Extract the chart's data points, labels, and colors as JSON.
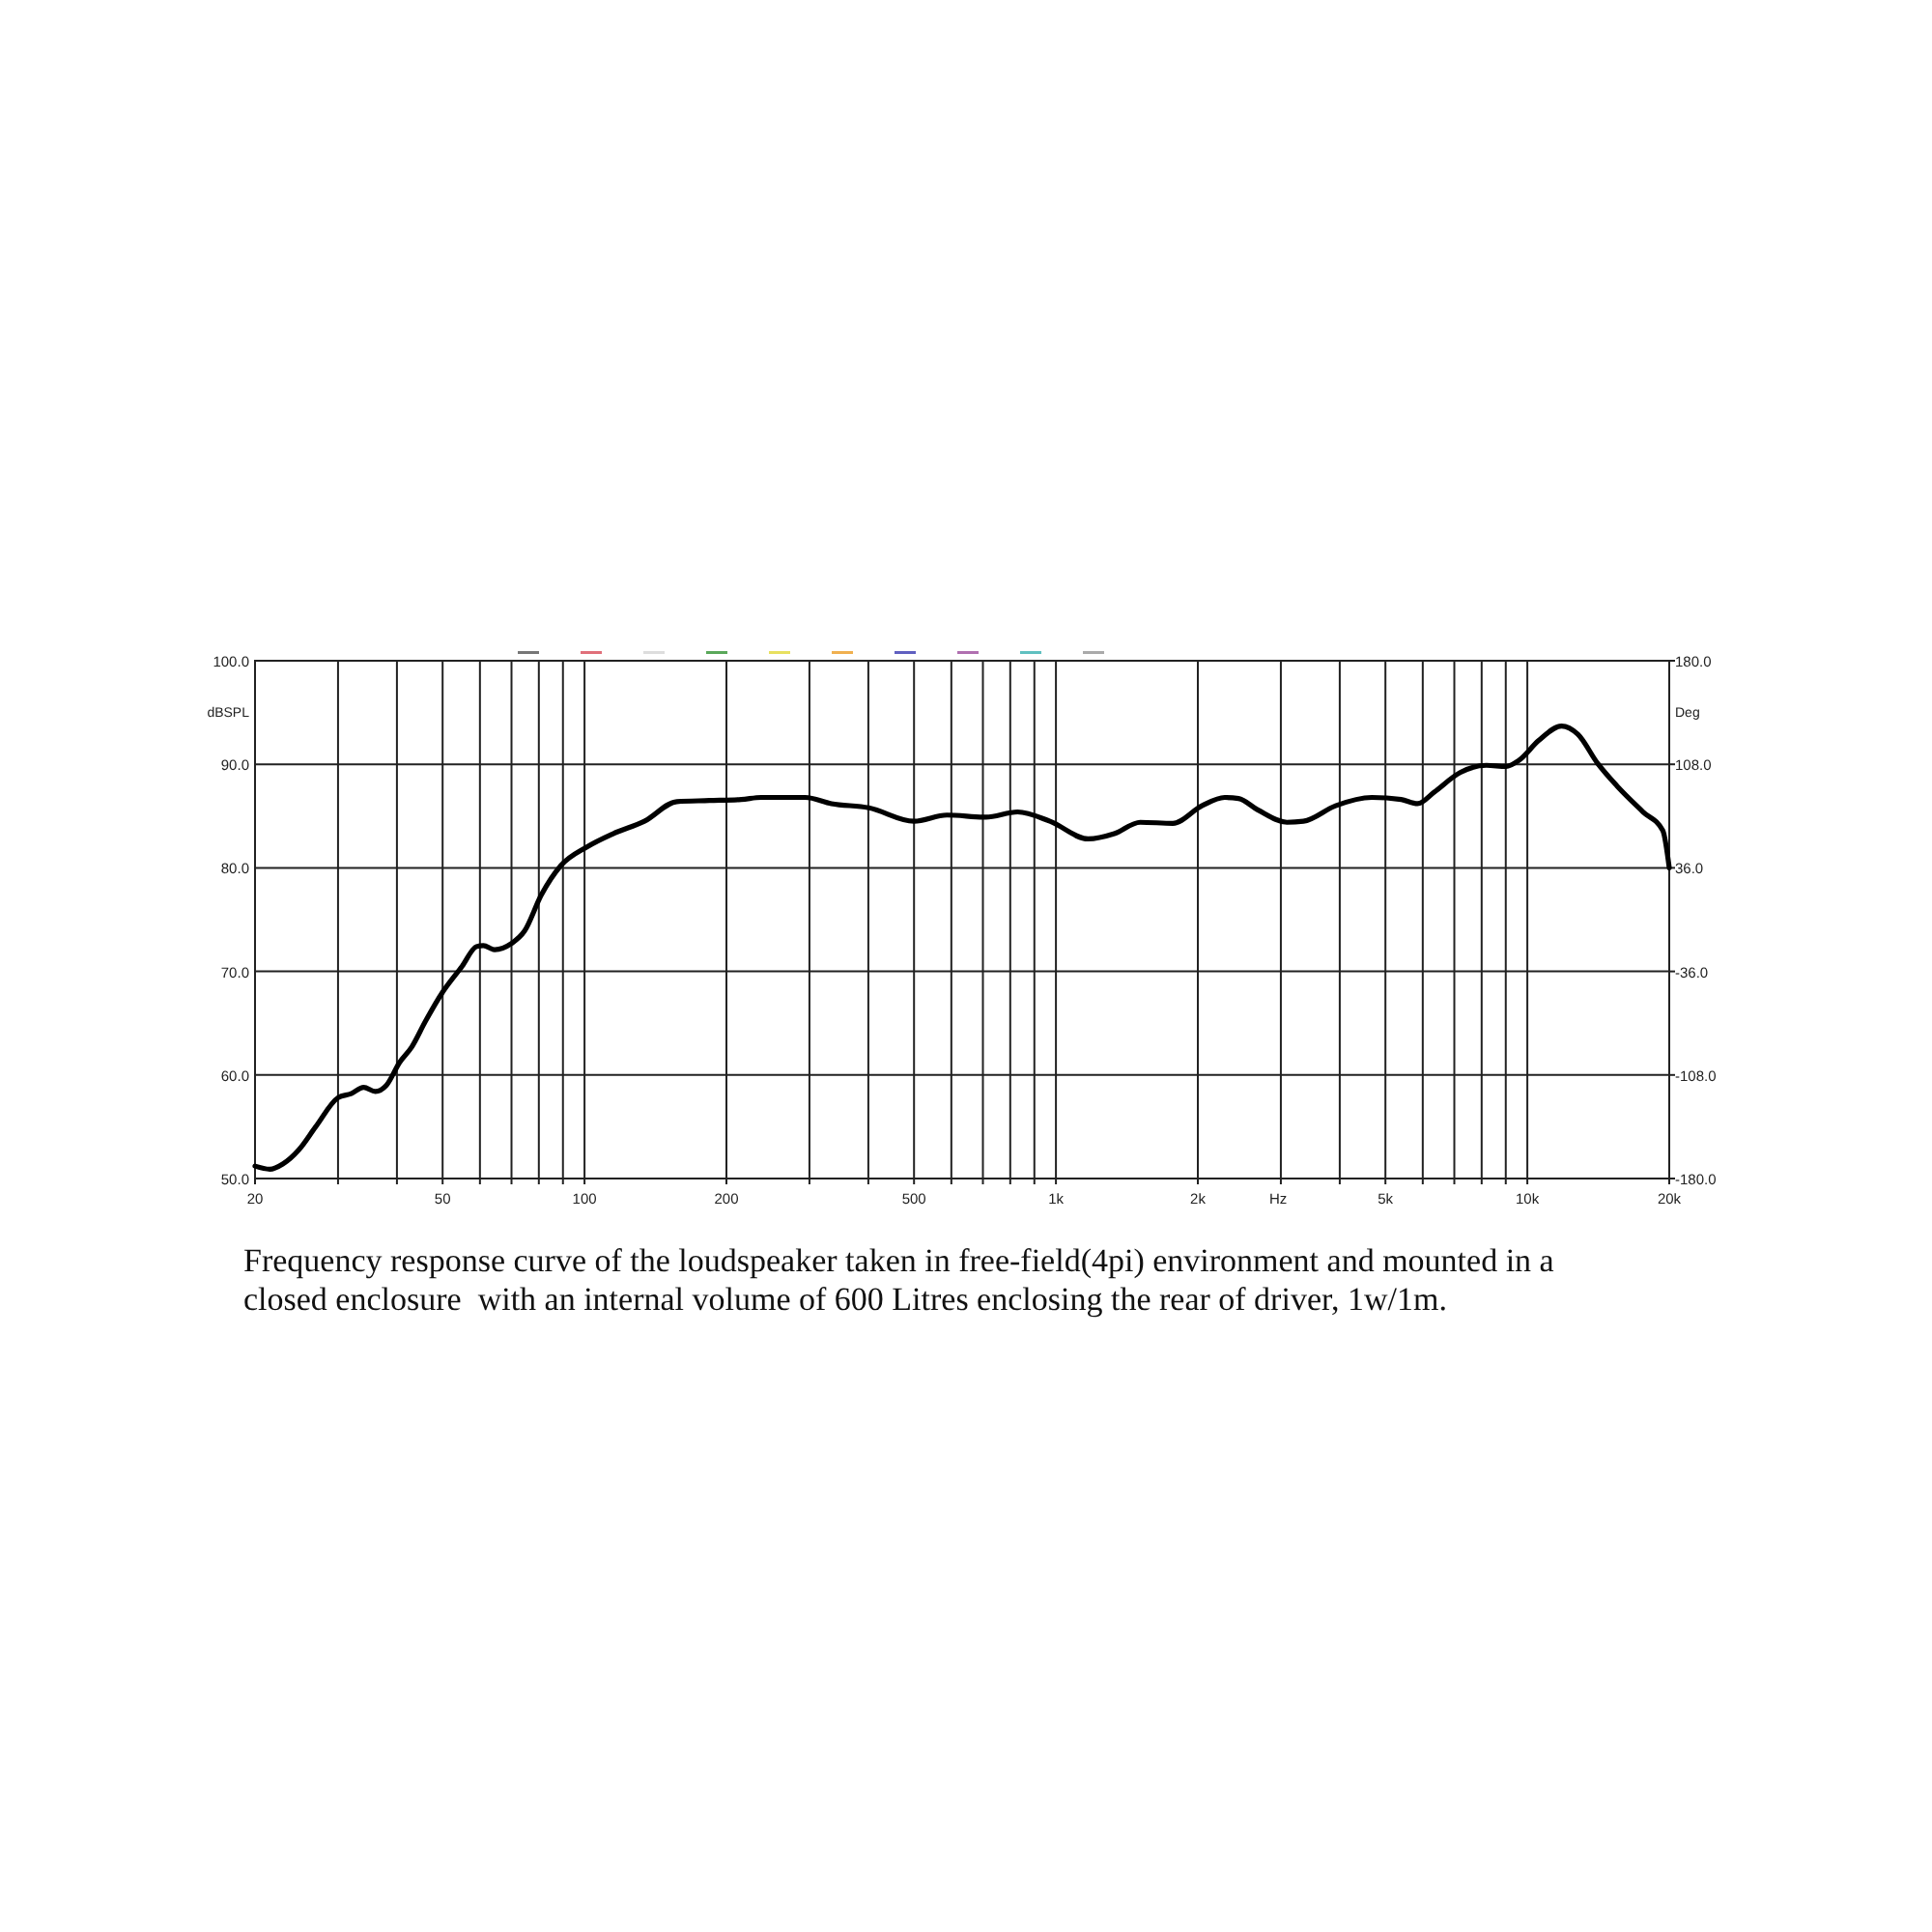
{
  "chart_data": {
    "type": "line",
    "xlabel": "Hz",
    "ylabel": "dBSPL",
    "y2label": "Deg",
    "log": "x",
    "grid": true,
    "marker": "none",
    "line_style": "solid",
    "xlim": [
      20,
      20000
    ],
    "ylim": [
      50,
      100
    ],
    "y2lim": [
      -180,
      180
    ],
    "xticks": [
      20,
      {
        "value": 30,
        "label": null
      },
      {
        "value": 40,
        "label": null
      },
      50,
      {
        "value": 60,
        "label": null
      },
      {
        "value": 70,
        "label": null
      },
      {
        "value": 80,
        "label": null
      },
      {
        "value": 90,
        "label": null
      },
      100,
      200,
      {
        "value": 300,
        "label": null
      },
      {
        "value": 400,
        "label": null
      },
      500,
      {
        "value": 600,
        "label": null
      },
      {
        "value": 700,
        "label": null
      },
      {
        "value": 800,
        "label": null
      },
      {
        "value": 900,
        "label": null
      },
      {
        "value": 1000,
        "label": "1k"
      },
      {
        "value": 2000,
        "label": "2k"
      },
      {
        "value": 3000,
        "label": null
      },
      {
        "value": 4000,
        "label": null
      },
      {
        "value": 5000,
        "label": "5k"
      },
      {
        "value": 6000,
        "label": null
      },
      {
        "value": 7000,
        "label": null
      },
      {
        "value": 8000,
        "label": null
      },
      {
        "value": 9000,
        "label": null
      },
      {
        "value": 10000,
        "label": "10k"
      },
      {
        "value": 20000,
        "label": "20k"
      }
    ],
    "yticks": [
      {
        "value": 50,
        "label": "50.0"
      },
      {
        "value": 60,
        "label": "60.0"
      },
      {
        "value": 70,
        "label": "70.0"
      },
      {
        "value": 80,
        "label": "80.0"
      },
      {
        "value": 90,
        "label": "90.0"
      },
      {
        "value": 100,
        "label": "100.0"
      }
    ],
    "y2ticks": [
      {
        "value": -180,
        "label": "-180.0"
      },
      {
        "value": -108,
        "label": "-108.0"
      },
      {
        "value": -36,
        "label": "-36.0"
      },
      {
        "value": 36,
        "label": "36.0"
      },
      {
        "value": 108,
        "label": "108.0"
      },
      {
        "value": 180,
        "label": "180.0"
      }
    ],
    "series": [
      {
        "color": "#000000",
        "x": [
          20,
          21.5,
          22.9,
          24.8,
          26.9,
          30,
          32,
          34,
          36,
          38,
          40.5,
          43,
          46,
          50,
          55,
          59,
          61,
          64.5,
          70,
          74.6,
          81,
          89,
          101,
          115,
          134,
          157,
          184,
          215,
          237,
          294,
          334,
          401,
          500,
          587,
          710,
          829,
          971,
          1170,
          1330,
          1510,
          1770,
          2040,
          2280,
          2440,
          2680,
          3090,
          3350,
          3920,
          4680,
          5400,
          5850,
          6340,
          7200,
          8190,
          9010,
          9610,
          10570,
          11820,
          12800,
          14090,
          15500,
          17600,
          19380,
          20000
        ],
        "values": [
          51.2,
          50.9,
          51.4,
          52.8,
          55,
          57.8,
          58.2,
          58.8,
          58.4,
          59,
          61.2,
          62.7,
          65.2,
          68,
          70.5,
          72.4,
          72.5,
          72.1,
          72.7,
          73.9,
          77.4,
          80.2,
          82,
          83.3,
          84.5,
          86.4,
          86.5,
          86.6,
          86.8,
          86.8,
          86.2,
          85.8,
          84.5,
          85.1,
          84.9,
          85.4,
          84.5,
          82.8,
          83.3,
          84.4,
          84.3,
          86,
          86.8,
          86.7,
          85.6,
          84.4,
          84.5,
          86,
          86.8,
          86.6,
          86.2,
          87.3,
          89.2,
          89.9,
          89.8,
          90.4,
          92.3,
          93.7,
          92.9,
          90.1,
          87.9,
          85.4,
          83.6,
          80
        ]
      }
    ],
    "annotations": [
      "Frequency response curve of the loudspeaker taken in free-field(4pi) environment and mounted in a closed enclosure  with an internal volume of 600 Litres enclosing the rear of driver, 1w/1m."
    ]
  }
}
